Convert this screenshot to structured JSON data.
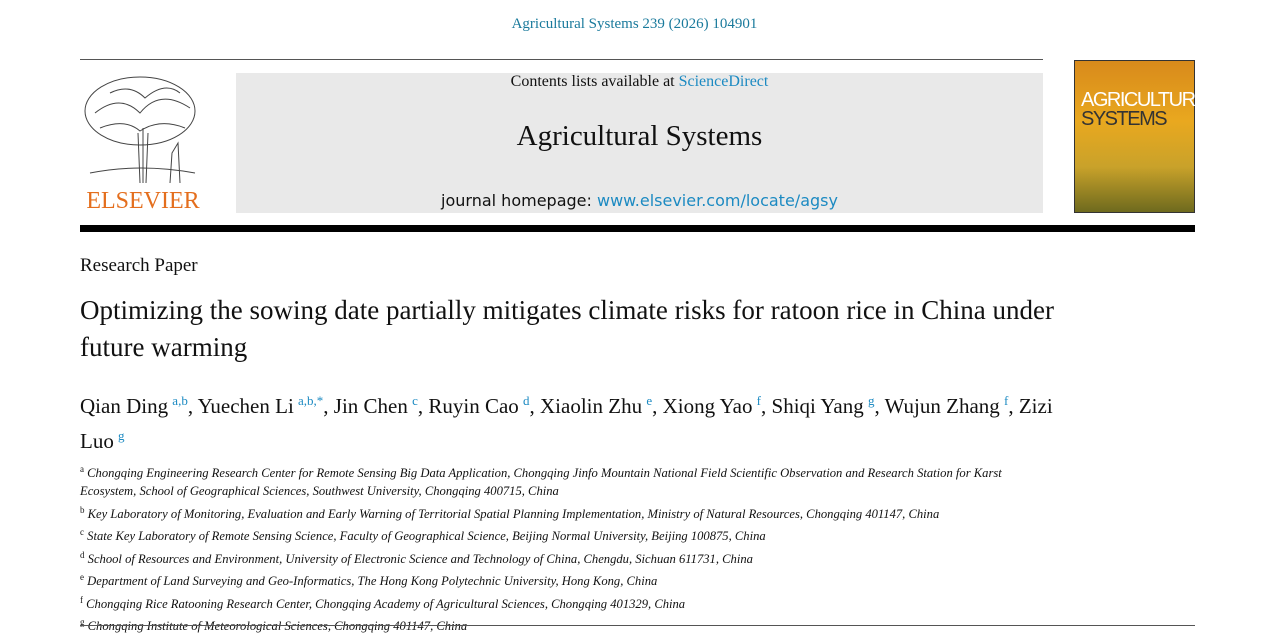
{
  "header": {
    "citation": "Agricultural Systems 239 (2026) 104901",
    "contents_prefix": "Contents lists available at",
    "contents_link": "ScienceDirect",
    "journal": "Agricultural Systems",
    "homepage_prefix": "journal homepage:",
    "homepage_link": "www.elsevier.com/locate/agsy",
    "publisher": "ELSEVIER",
    "cover_lines": [
      "AGRICULTURAL",
      "SYSTEMS"
    ]
  },
  "article": {
    "type": "Research Paper",
    "title": "Optimizing the sowing date partially mitigates climate risks for ratoon rice in China under future warming",
    "separator": ",",
    "authors": [
      {
        "name": "Qian Ding",
        "sup": "a,b"
      },
      {
        "name": "Yuechen Li",
        "sup": "a,b,*"
      },
      {
        "name": "Jin Chen",
        "sup": "c"
      },
      {
        "name": "Ruyin Cao",
        "sup": "d"
      },
      {
        "name": "Xiaolin Zhu",
        "sup": "e"
      },
      {
        "name": "Xiong Yao",
        "sup": "f"
      },
      {
        "name": "Shiqi Yang",
        "sup": "g"
      },
      {
        "name": "Wujun Zhang",
        "sup": "f"
      },
      {
        "name": "Zizi Luo",
        "sup": "g"
      }
    ],
    "affiliations": [
      {
        "label": "a",
        "text": "Chongqing Engineering Research Center for Remote Sensing Big Data Application, Chongqing Jinfo Mountain National Field Scientific Observation and Research Station for Karst Ecosystem, School of Geographical Sciences, Southwest University, Chongqing 400715, China"
      },
      {
        "label": "b",
        "text": "Key Laboratory of Monitoring, Evaluation and Early Warning of Territorial Spatial Planning Implementation, Ministry of Natural Resources, Chongqing 401147, China"
      },
      {
        "label": "c",
        "text": "State Key Laboratory of Remote Sensing Science, Faculty of Geographical Science, Beijing Normal University, Beijing 100875, China"
      },
      {
        "label": "d",
        "text": "School of Resources and Environment, University of Electronic Science and Technology of China, Chengdu, Sichuan 611731, China"
      },
      {
        "label": "e",
        "text": "Department of Land Surveying and Geo-Informatics, The Hong Kong Polytechnic University, Hong Kong, China"
      },
      {
        "label": "f",
        "text": "Chongqing Rice Ratooning Research Center, Chongqing Academy of Agricultural Sciences, Chongqing 401329, China"
      },
      {
        "label": "g",
        "text": "Chongqing Institute of Meteorological Sciences, Chongqing 401147, China"
      }
    ]
  }
}
